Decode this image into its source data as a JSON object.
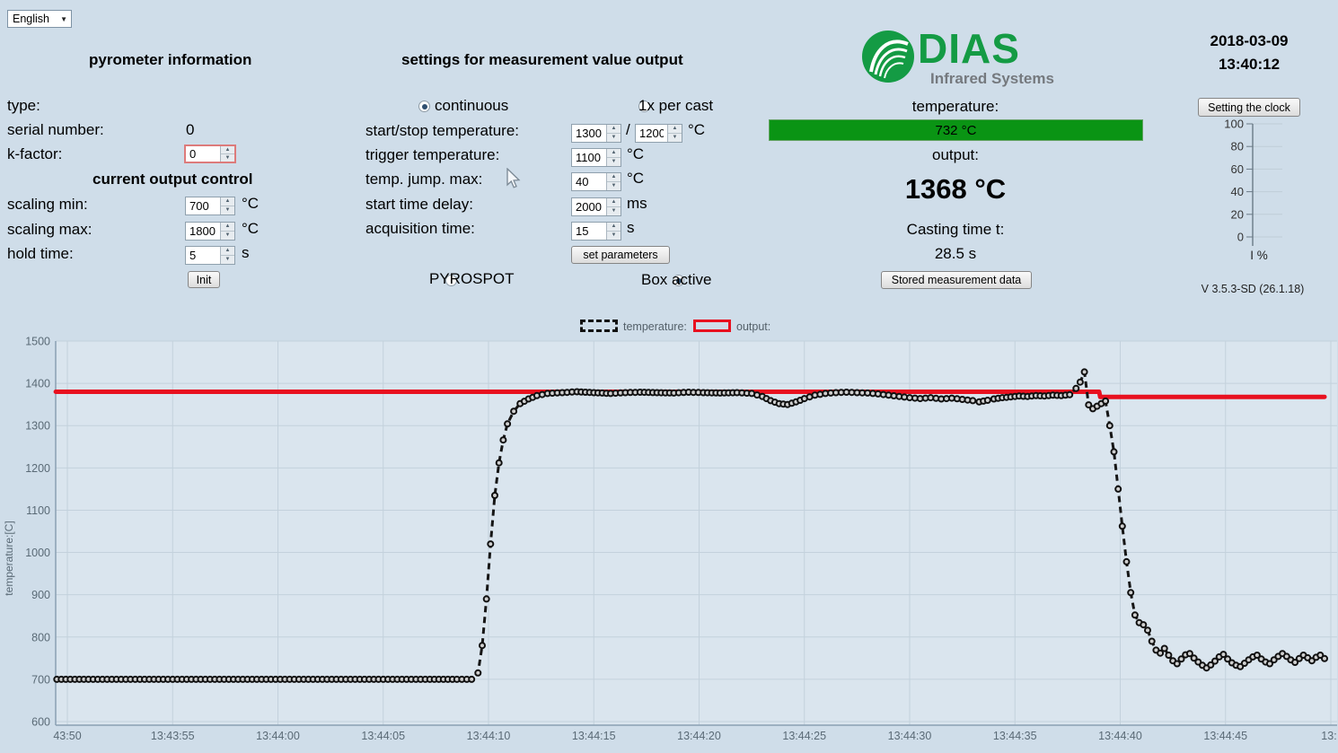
{
  "language": {
    "selected": "English"
  },
  "left_panel": {
    "title": "pyrometer information",
    "type_label": "type:",
    "type_value": "",
    "serial_label": "serial number:",
    "serial_value": "0",
    "kfactor_label": "k-factor:",
    "kfactor_value": "0",
    "output_control_title": "current output control",
    "scaling_min": {
      "label": "scaling min:",
      "value": "700",
      "unit": "°C"
    },
    "scaling_max": {
      "label": "scaling max:",
      "value": "1800",
      "unit": "°C"
    },
    "hold_time": {
      "label": "hold time:",
      "value": "5",
      "unit": "s"
    },
    "init_button": "Init"
  },
  "settings_panel": {
    "title": "settings for measurement value output",
    "continuous": {
      "label": "continuous",
      "selected": true
    },
    "per_cast": {
      "label": "1x per cast",
      "selected": false
    },
    "start_stop": {
      "label": "start/stop temperature:",
      "value1": "1300",
      "sep": "/",
      "value2": "1200",
      "unit": "°C"
    },
    "trigger": {
      "label": "trigger temperature:",
      "value": "1100",
      "unit": "°C"
    },
    "temp_jump": {
      "label": "temp. jump. max:",
      "value": "40",
      "unit": "°C"
    },
    "start_delay": {
      "label": "start time delay:",
      "value": "2000",
      "unit": "ms"
    },
    "acq_time": {
      "label": "acquisition time:",
      "value": "15",
      "unit": "s"
    },
    "set_parameters_button": "set parameters",
    "pyrospot": {
      "label": "PYROSPOT",
      "selected": false
    },
    "box_active": {
      "label": "Box active",
      "selected": true
    }
  },
  "status_panel": {
    "logo_text": "DIAS",
    "logo_subtext": "Infrared Systems",
    "temperature_label": "temperature:",
    "temperature_value": "732 °C",
    "output_label": "output:",
    "output_value": "1368 °C",
    "casting_label": "Casting time t:",
    "casting_value": "28.5 s",
    "stored_button": "Stored measurement data"
  },
  "clock_panel": {
    "date": "2018-03-09",
    "time": "13:40:12",
    "set_clock_button": "Setting the clock",
    "gauge": {
      "ticks": [
        100,
        80,
        60,
        40,
        20,
        0
      ],
      "unit": "I %"
    },
    "version": "V 3.5.3-SD (26.1.18)"
  },
  "legend": {
    "temperature_label": "temperature:",
    "output_label": "output:"
  },
  "colors": {
    "page_bg": "#cfdde9",
    "plot_bg": "#dae5ee",
    "grid": "#c3d1dc",
    "axis": "#8aa0b3",
    "tick_text": "#5a6a76",
    "output_line": "#e8101f",
    "temperature_line": "#161616",
    "green_bar": "#0a9414",
    "dias_green": "#149b44"
  },
  "chart_data": {
    "type": "line",
    "title": "",
    "xlabel": "",
    "ylabel": "temperature:[C]",
    "ylim": [
      600,
      1500
    ],
    "y_ticks": [
      600,
      700,
      800,
      900,
      1000,
      1100,
      1200,
      1300,
      1400,
      1500
    ],
    "x_tick_seconds": [
      0,
      5,
      10,
      15,
      20,
      25,
      30,
      35,
      40,
      45,
      50,
      55,
      60
    ],
    "x_tick_labels": [
      "43:50",
      "13:43:55",
      "13:44:00",
      "13:44:05",
      "13:44:10",
      "13:44:15",
      "13:44:20",
      "13:44:25",
      "13:44:30",
      "13:44:35",
      "13:44:40",
      "13:44:45",
      "13:"
    ],
    "grid": true,
    "legend_position": "top",
    "series": [
      {
        "name": "output",
        "style": "solid",
        "color": "#e8101f",
        "points": [
          [
            -0.55,
            1380
          ],
          [
            49.0,
            1380
          ],
          [
            49.05,
            1368
          ],
          [
            59.7,
            1368
          ]
        ]
      },
      {
        "name": "temperature",
        "style": "dashed-dots",
        "color": "#161616",
        "points": [
          [
            -0.5,
            700
          ],
          [
            1,
            700
          ],
          [
            3,
            700
          ],
          [
            5,
            700
          ],
          [
            7,
            700
          ],
          [
            9,
            700
          ],
          [
            11,
            700
          ],
          [
            13,
            700
          ],
          [
            15,
            700
          ],
          [
            17,
            700
          ],
          [
            18.5,
            700
          ],
          [
            19.2,
            700
          ],
          [
            19.5,
            715
          ],
          [
            19.7,
            780
          ],
          [
            19.9,
            890
          ],
          [
            20.1,
            1020
          ],
          [
            20.3,
            1135
          ],
          [
            20.5,
            1212
          ],
          [
            20.7,
            1266
          ],
          [
            20.9,
            1304
          ],
          [
            21.2,
            1334
          ],
          [
            21.5,
            1352
          ],
          [
            21.9,
            1363
          ],
          [
            22.3,
            1371
          ],
          [
            22.8,
            1376
          ],
          [
            23.5,
            1378
          ],
          [
            24.2,
            1380
          ],
          [
            25,
            1378
          ],
          [
            25.8,
            1376
          ],
          [
            26.5,
            1378
          ],
          [
            27.2,
            1379
          ],
          [
            28,
            1378
          ],
          [
            28.8,
            1377
          ],
          [
            29.5,
            1379
          ],
          [
            30.2,
            1378
          ],
          [
            31,
            1377
          ],
          [
            31.8,
            1378
          ],
          [
            32.5,
            1376
          ],
          [
            33,
            1369
          ],
          [
            33.4,
            1359
          ],
          [
            33.8,
            1352
          ],
          [
            34.2,
            1350
          ],
          [
            34.6,
            1356
          ],
          [
            35,
            1364
          ],
          [
            35.5,
            1372
          ],
          [
            36,
            1376
          ],
          [
            36.5,
            1378
          ],
          [
            37,
            1379
          ],
          [
            37.5,
            1378
          ],
          [
            38,
            1377
          ],
          [
            38.5,
            1375
          ],
          [
            39,
            1372
          ],
          [
            39.5,
            1369
          ],
          [
            40,
            1366
          ],
          [
            40.5,
            1364
          ],
          [
            41,
            1366
          ],
          [
            41.5,
            1363
          ],
          [
            42,
            1365
          ],
          [
            42.5,
            1362
          ],
          [
            43,
            1359
          ],
          [
            43.3,
            1356
          ],
          [
            43.7,
            1360
          ],
          [
            44,
            1363
          ],
          [
            44.4,
            1366
          ],
          [
            44.8,
            1368
          ],
          [
            45.2,
            1370
          ],
          [
            45.6,
            1369
          ],
          [
            46,
            1371
          ],
          [
            46.4,
            1370
          ],
          [
            46.8,
            1372
          ],
          [
            47.2,
            1371
          ],
          [
            47.6,
            1373
          ],
          [
            47.9,
            1388
          ],
          [
            48.1,
            1403
          ],
          [
            48.3,
            1427
          ],
          [
            48.5,
            1349
          ],
          [
            48.7,
            1340
          ],
          [
            48.9,
            1346
          ],
          [
            49.1,
            1352
          ],
          [
            49.3,
            1358
          ],
          [
            49.5,
            1300
          ],
          [
            49.7,
            1238
          ],
          [
            49.9,
            1150
          ],
          [
            50.1,
            1062
          ],
          [
            50.3,
            978
          ],
          [
            50.5,
            905
          ],
          [
            50.7,
            852
          ],
          [
            50.9,
            834
          ],
          [
            51.1,
            829
          ],
          [
            51.3,
            816
          ],
          [
            51.5,
            790
          ],
          [
            51.7,
            769
          ],
          [
            51.9,
            762
          ],
          [
            52.1,
            773
          ],
          [
            52.3,
            757
          ],
          [
            52.5,
            744
          ],
          [
            52.7,
            737
          ],
          [
            52.9,
            748
          ],
          [
            53.1,
            758
          ],
          [
            53.3,
            761
          ],
          [
            53.5,
            750
          ],
          [
            53.7,
            741
          ],
          [
            53.9,
            733
          ],
          [
            54.1,
            727
          ],
          [
            54.3,
            734
          ],
          [
            54.5,
            743
          ],
          [
            54.7,
            753
          ],
          [
            54.9,
            759
          ],
          [
            55.1,
            748
          ],
          [
            55.3,
            739
          ],
          [
            55.5,
            733
          ],
          [
            55.7,
            730
          ],
          [
            55.9,
            738
          ],
          [
            56.1,
            746
          ],
          [
            56.3,
            753
          ],
          [
            56.5,
            757
          ],
          [
            56.7,
            748
          ],
          [
            56.9,
            741
          ],
          [
            57.1,
            737
          ],
          [
            57.3,
            746
          ],
          [
            57.5,
            754
          ],
          [
            57.7,
            761
          ],
          [
            57.9,
            754
          ],
          [
            58.1,
            746
          ],
          [
            58.3,
            740
          ],
          [
            58.5,
            749
          ],
          [
            58.7,
            757
          ],
          [
            58.9,
            751
          ],
          [
            59.1,
            744
          ],
          [
            59.3,
            752
          ],
          [
            59.5,
            757
          ],
          [
            59.7,
            749
          ]
        ]
      }
    ]
  }
}
